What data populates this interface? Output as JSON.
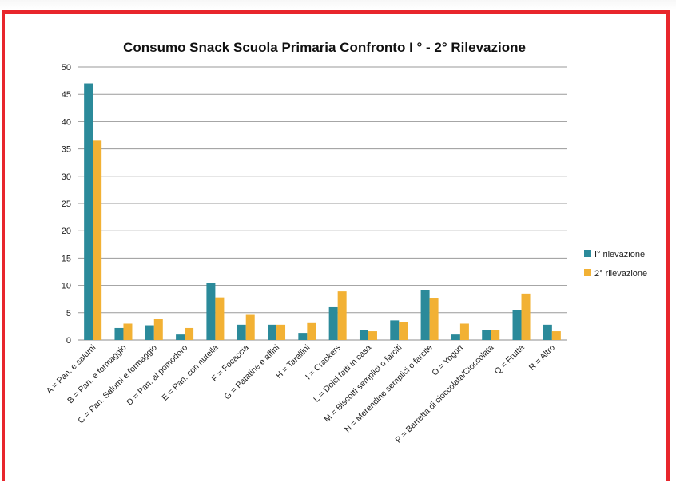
{
  "chart_data": {
    "type": "bar",
    "title": "Consumo Snack Scuola Primaria Confronto I ° - 2° Rilevazione",
    "xlabel": "",
    "ylabel": "",
    "ylim": [
      0,
      50
    ],
    "yticks": [
      0,
      5,
      10,
      15,
      20,
      25,
      30,
      35,
      40,
      45,
      50
    ],
    "grid": true,
    "legend_position": "right",
    "categories": [
      "A = Pan. e salumi",
      "B = Pan. e formaggio",
      "C = Pan. Salumi e formaggio",
      "D = Pan. al pomodoro",
      "E = Pan. con nutella",
      "F = Focaccia",
      "G = Patatine e affini",
      "H = Tarallini",
      "I = Crackers",
      "L = Dolci fatti in casa",
      "M = Biscotti semplici o farciti",
      "N = Merendine semplici o farcite",
      "O = Yogurt",
      "P = Barretta di cioccolata/Cioccolata",
      "Q = Frutta",
      "R = Altro"
    ],
    "series": [
      {
        "name": "I° rilevazione",
        "color": "#2b8a9a",
        "values": [
          47,
          2.2,
          2.7,
          1,
          10.4,
          2.8,
          2.8,
          1.3,
          6,
          1.8,
          3.6,
          9.1,
          1,
          1.8,
          5.5,
          2.8
        ]
      },
      {
        "name": "2° rilevazione",
        "color": "#f2b134",
        "values": [
          36.5,
          3,
          3.8,
          2.2,
          7.8,
          4.6,
          2.8,
          3.1,
          8.9,
          1.6,
          3.3,
          7.6,
          3,
          1.8,
          8.5,
          1.6
        ]
      }
    ]
  }
}
